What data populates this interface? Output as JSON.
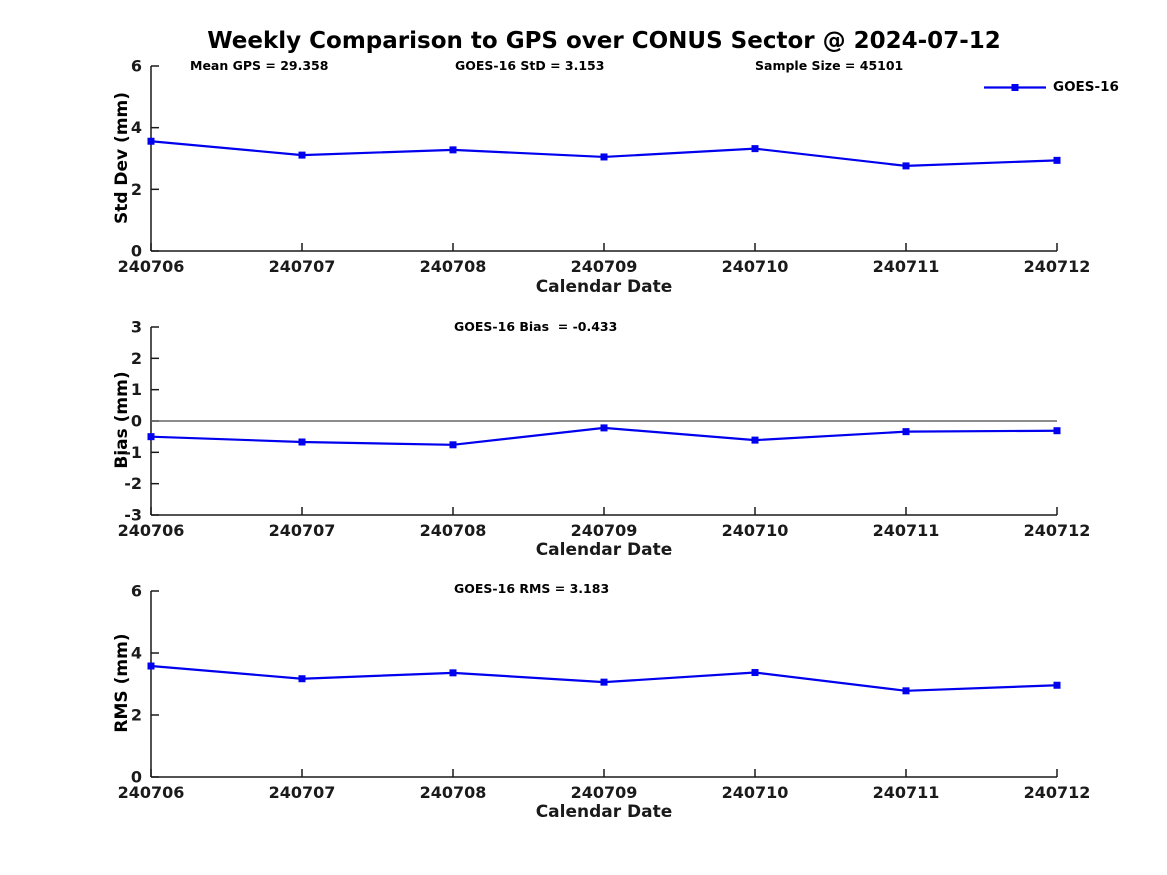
{
  "figure": {
    "title": "Weekly Comparison to GPS over CONUS Sector @ 2024-07-12"
  },
  "legend": {
    "label": "GOES-16"
  },
  "chart_data": [
    {
      "type": "line",
      "ylabel": "Std Dev (mm)",
      "xlabel": "Calendar Date",
      "categories": [
        "240706",
        "240707",
        "240708",
        "240709",
        "240710",
        "240711",
        "240712"
      ],
      "ylim": [
        0,
        6
      ],
      "yticks": [
        6,
        4,
        2,
        0
      ],
      "zero_line": false,
      "annotations": [
        "Mean GPS = 29.358",
        "GOES-16 StD = 3.153",
        "Sample Size = 45101"
      ],
      "series": [
        {
          "name": "GOES-16",
          "color": "#0000ee",
          "marker": "square",
          "values": [
            3.56,
            3.11,
            3.28,
            3.05,
            3.32,
            2.76,
            2.94
          ]
        }
      ]
    },
    {
      "type": "line",
      "ylabel": "Bias (mm)",
      "xlabel": "Calendar Date",
      "categories": [
        "240706",
        "240707",
        "240708",
        "240709",
        "240710",
        "240711",
        "240712"
      ],
      "ylim": [
        -3,
        3
      ],
      "yticks": [
        3,
        2,
        1,
        0,
        -1,
        -2,
        -3
      ],
      "zero_line": true,
      "annotations": [
        "GOES-16 Bias  = -0.433"
      ],
      "series": [
        {
          "name": "GOES-16",
          "color": "#0000ee",
          "marker": "square",
          "values": [
            -0.5,
            -0.67,
            -0.76,
            -0.22,
            -0.61,
            -0.34,
            -0.31
          ]
        }
      ]
    },
    {
      "type": "line",
      "ylabel": "RMS (mm)",
      "xlabel": "Calendar Date",
      "categories": [
        "240706",
        "240707",
        "240708",
        "240709",
        "240710",
        "240711",
        "240712"
      ],
      "ylim": [
        0,
        6
      ],
      "yticks": [
        6,
        4,
        2,
        0
      ],
      "zero_line": false,
      "annotations": [
        "GOES-16 RMS = 3.183"
      ],
      "series": [
        {
          "name": "GOES-16",
          "color": "#0000ee",
          "marker": "square",
          "values": [
            3.58,
            3.17,
            3.36,
            3.06,
            3.37,
            2.78,
            2.96
          ]
        }
      ]
    }
  ]
}
